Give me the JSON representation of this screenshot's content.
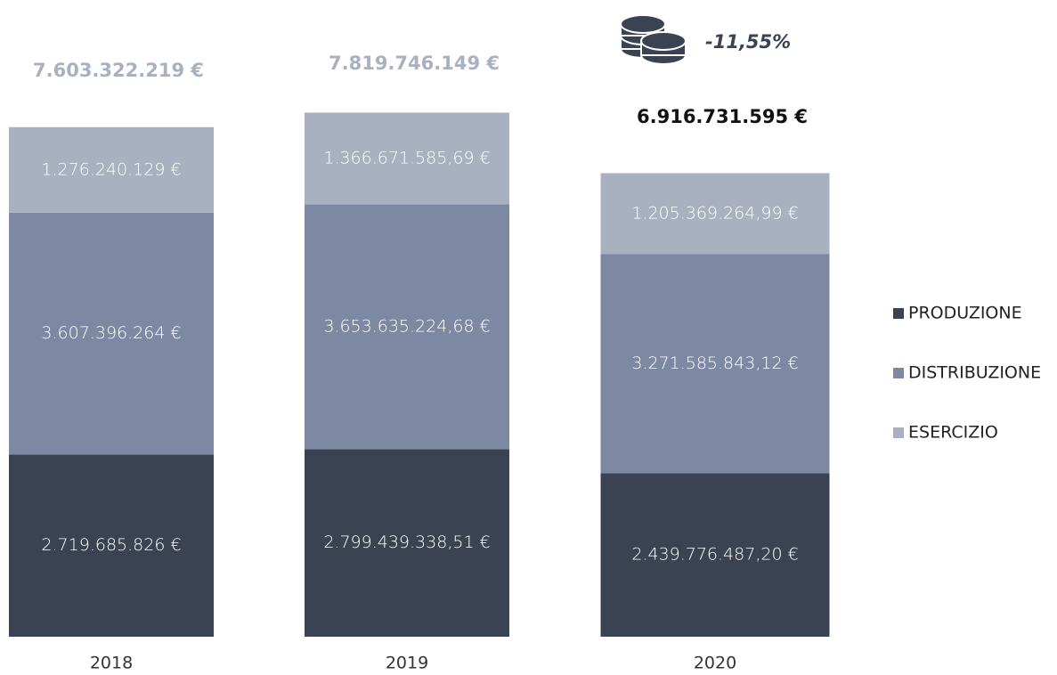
{
  "chart_data": {
    "type": "stacked_bar",
    "categories": [
      "2018",
      "2019",
      "2020"
    ],
    "ylim": [
      0,
      9500000000
    ],
    "series": [
      {
        "name": "PRODUZIONE",
        "color": "#3b4353",
        "values": [
          2719685826,
          2799439338.51,
          2439776487.2
        ],
        "value_labels": [
          "2.719.685.826 €",
          "2.799.439.338,51 €",
          "2.439.776.487,20 €"
        ]
      },
      {
        "name": "DISTRIBUZIONE",
        "color": "#7d89a2",
        "values": [
          3607396264,
          3653635224.68,
          3271585843.12
        ],
        "value_labels": [
          "3.607.396.264 €",
          "3.653.635.224,68 €",
          "3.271.585.843,12 €"
        ]
      },
      {
        "name": "ESERCIZIO",
        "color": "#a9b1c1",
        "values": [
          1276240129,
          1366671585.69,
          1205369264.99
        ],
        "value_labels": [
          "1.276.240.129 €",
          "1.366.671.585,69 €",
          "1.205.369.264,99 €"
        ]
      }
    ],
    "totals": {
      "values": [
        7603322219,
        7819746149,
        6916731595
      ],
      "value_labels": [
        "7.603.322.219 €",
        "7.819.746.149 €",
        "6.916.731.595 €"
      ],
      "colors": [
        "#a9b1c1",
        "#a9b1c1",
        "#111111"
      ]
    },
    "change": {
      "value": -11.55,
      "label": "-11,55%"
    }
  }
}
